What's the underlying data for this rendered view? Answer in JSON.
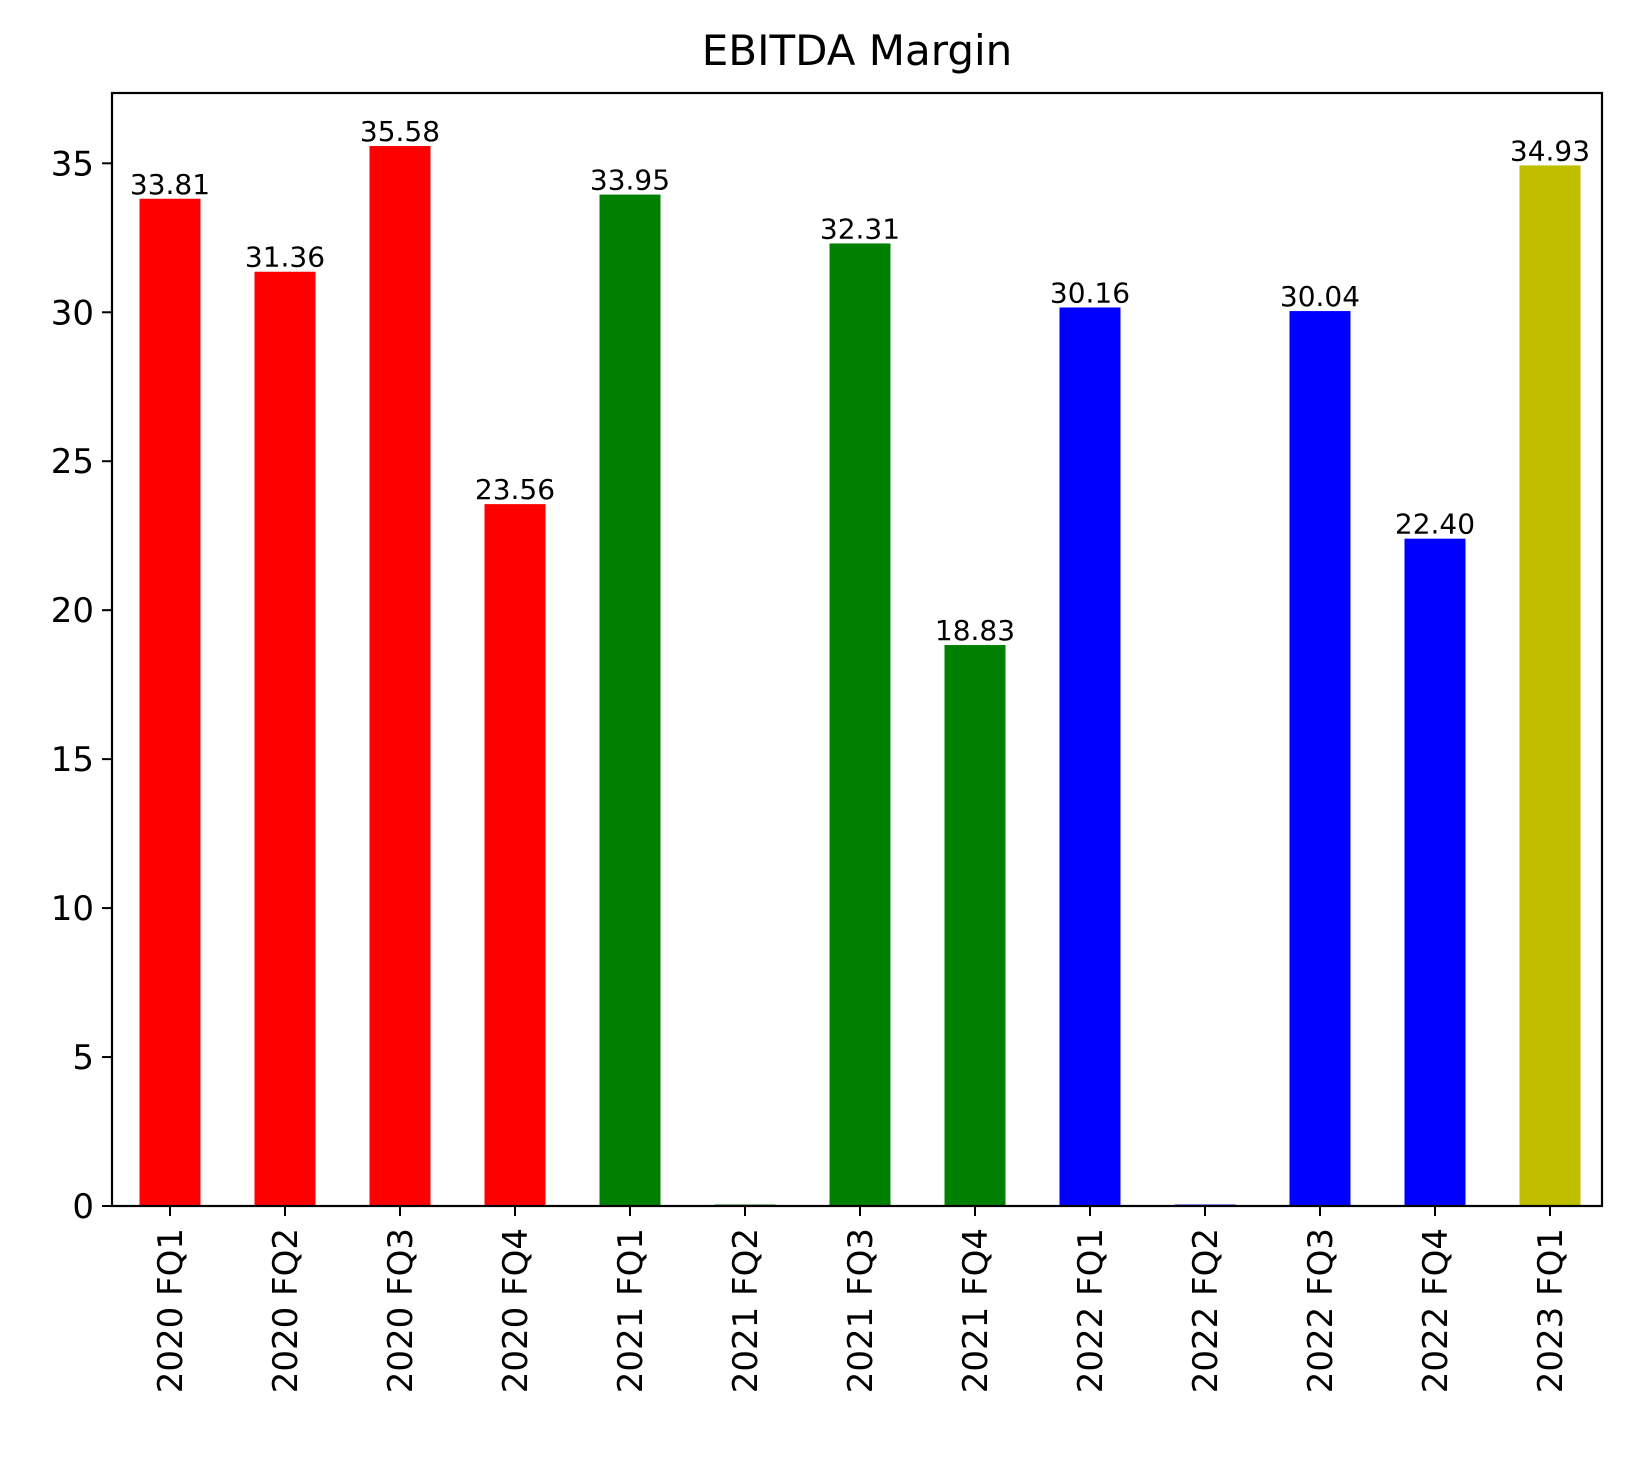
{
  "chart_data": {
    "type": "bar",
    "title": "EBITDA Margin",
    "xlabel": "",
    "ylabel": "",
    "categories": [
      "2020 FQ1",
      "2020 FQ2",
      "2020 FQ3",
      "2020 FQ4",
      "2021 FQ1",
      "2021 FQ2",
      "2021 FQ3",
      "2021 FQ4",
      "2022 FQ1",
      "2022 FQ2",
      "2022 FQ3",
      "2022 FQ4",
      "2023 FQ1"
    ],
    "values": [
      33.81,
      31.36,
      35.58,
      23.56,
      33.95,
      0,
      32.31,
      18.83,
      30.16,
      0,
      30.04,
      22.4,
      34.93
    ],
    "value_labels": [
      "33.81",
      "31.36",
      "35.58",
      "23.56",
      "33.95",
      "",
      "32.31",
      "18.83",
      "30.16",
      "",
      "30.04",
      "22.40",
      "34.93"
    ],
    "bar_colors": [
      "#ff0000",
      "#ff0000",
      "#ff0000",
      "#ff0000",
      "#008000",
      "#008000",
      "#008000",
      "#008000",
      "#0000ff",
      "#0000ff",
      "#0000ff",
      "#0000ff",
      "#bfbf00"
    ],
    "ylim": [
      0,
      37.36
    ],
    "yticks": [
      0,
      5,
      10,
      15,
      20,
      25,
      30,
      35
    ],
    "grid": false,
    "legend": "none"
  }
}
